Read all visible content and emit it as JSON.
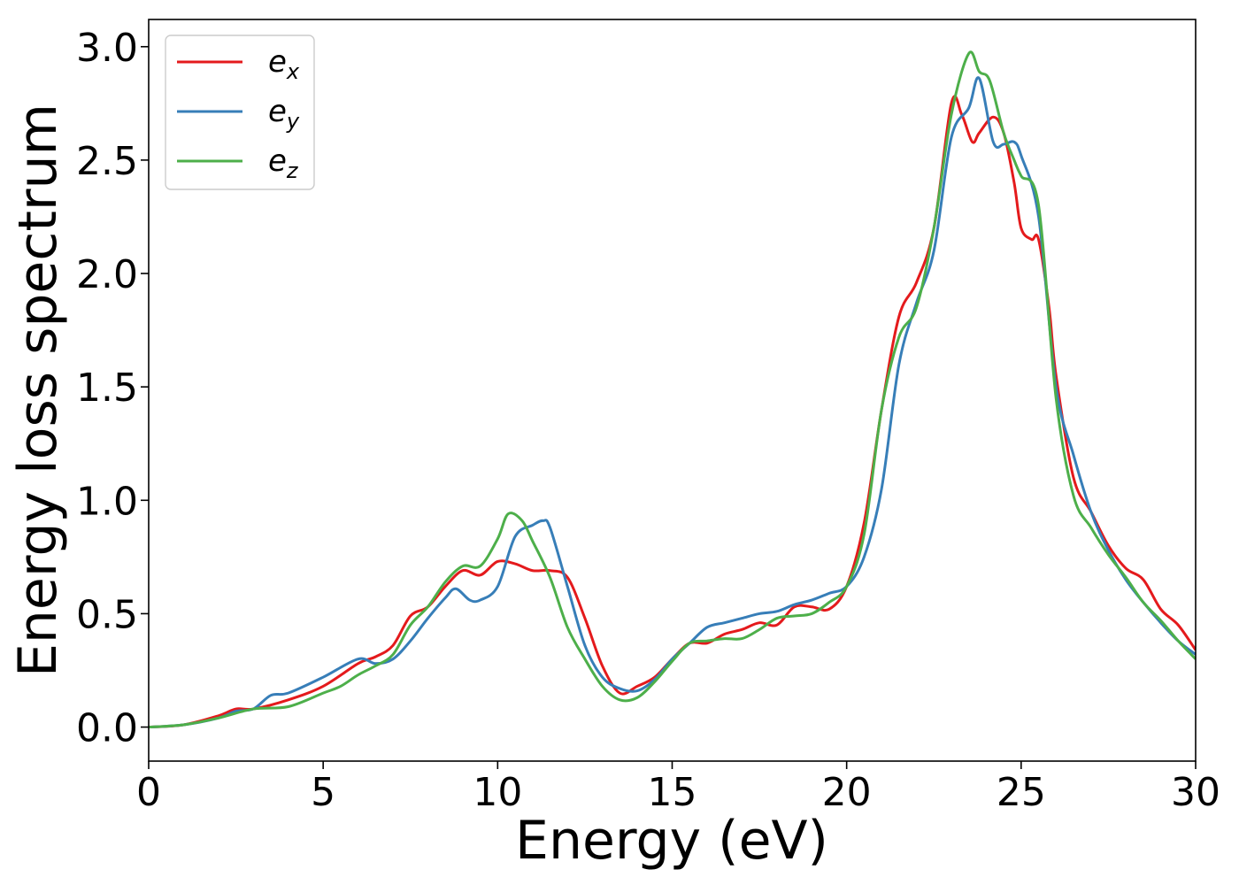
{
  "chart_data": {
    "type": "line",
    "title": "",
    "xlabel": "Energy (eV)",
    "ylabel": "Energy loss spectrum",
    "xlim": [
      0,
      30
    ],
    "ylim": [
      -0.15,
      3.12
    ],
    "xticks": [
      0,
      5,
      10,
      15,
      20,
      25,
      30
    ],
    "xtick_labels": [
      "0",
      "5",
      "10",
      "15",
      "20",
      "25",
      "30"
    ],
    "yticks": [
      0.0,
      0.5,
      1.0,
      1.5,
      2.0,
      2.5,
      3.0
    ],
    "ytick_labels": [
      "0.0",
      "0.5",
      "1.0",
      "1.5",
      "2.0",
      "2.5",
      "3.0"
    ],
    "grid": false,
    "legend_position": "top-left",
    "series": [
      {
        "name": "e_x",
        "legend_base": "e",
        "legend_sub": "x",
        "color": "#e41a1c",
        "x": [
          0,
          1,
          2,
          2.5,
          3,
          4,
          5,
          6,
          6.5,
          7,
          7.5,
          8,
          8.5,
          9,
          9.5,
          10,
          10.5,
          11,
          11.5,
          12,
          12.5,
          13,
          13.5,
          14,
          14.5,
          15,
          15.5,
          16,
          16.5,
          17,
          17.5,
          18,
          18.5,
          19,
          19.5,
          20,
          20.5,
          21,
          21.5,
          22,
          22.5,
          23,
          23.3,
          23.6,
          23.8,
          24.2,
          24.5,
          24.8,
          25,
          25.3,
          25.5,
          25.8,
          26,
          26.5,
          27,
          27.5,
          28,
          28.5,
          29,
          29.5,
          30
        ],
        "y": [
          0,
          0.01,
          0.05,
          0.08,
          0.08,
          0.12,
          0.18,
          0.28,
          0.31,
          0.36,
          0.49,
          0.53,
          0.62,
          0.69,
          0.67,
          0.73,
          0.72,
          0.69,
          0.69,
          0.66,
          0.48,
          0.27,
          0.15,
          0.18,
          0.22,
          0.3,
          0.37,
          0.37,
          0.41,
          0.43,
          0.46,
          0.45,
          0.53,
          0.53,
          0.52,
          0.62,
          0.9,
          1.4,
          1.81,
          1.96,
          2.2,
          2.75,
          2.7,
          2.58,
          2.62,
          2.69,
          2.62,
          2.4,
          2.2,
          2.15,
          2.15,
          1.85,
          1.55,
          1.1,
          0.95,
          0.8,
          0.7,
          0.65,
          0.52,
          0.45,
          0.34
        ]
      },
      {
        "name": "e_y",
        "legend_base": "e",
        "legend_sub": "y",
        "color": "#377eb8",
        "x": [
          0,
          1,
          2,
          2.5,
          3,
          3.5,
          4,
          5,
          6,
          6.5,
          7,
          7.5,
          8,
          8.5,
          8.8,
          9.2,
          9.5,
          10,
          10.5,
          11,
          11.3,
          11.5,
          12,
          12.5,
          13,
          13.5,
          14,
          14.5,
          15,
          15.5,
          16,
          16.5,
          17,
          17.5,
          18,
          18.5,
          19,
          19.5,
          20,
          20.5,
          21,
          21.5,
          22,
          22.5,
          23,
          23.5,
          23.8,
          24.2,
          24.5,
          24.8,
          25,
          25.5,
          26,
          26.5,
          27,
          27.5,
          28,
          28.5,
          29,
          29.5,
          30
        ],
        "y": [
          0,
          0.01,
          0.04,
          0.07,
          0.08,
          0.14,
          0.15,
          0.22,
          0.3,
          0.28,
          0.3,
          0.38,
          0.48,
          0.57,
          0.61,
          0.56,
          0.56,
          0.62,
          0.84,
          0.89,
          0.91,
          0.88,
          0.62,
          0.36,
          0.22,
          0.17,
          0.16,
          0.21,
          0.3,
          0.37,
          0.44,
          0.46,
          0.48,
          0.5,
          0.51,
          0.54,
          0.56,
          0.59,
          0.62,
          0.75,
          1.05,
          1.6,
          1.87,
          2.1,
          2.6,
          2.73,
          2.86,
          2.58,
          2.57,
          2.58,
          2.52,
          2.25,
          1.5,
          1.2,
          0.95,
          0.78,
          0.65,
          0.55,
          0.46,
          0.38,
          0.32
        ]
      },
      {
        "name": "e_z",
        "legend_base": "e",
        "legend_sub": "z",
        "color": "#4daf4a",
        "x": [
          0,
          1,
          2,
          3,
          4,
          5,
          5.5,
          6,
          6.5,
          7,
          7.5,
          8,
          8.5,
          9,
          9.5,
          10,
          10.3,
          10.7,
          11,
          11.5,
          12,
          12.5,
          13,
          13.5,
          14,
          14.5,
          15,
          15.5,
          16,
          16.5,
          17,
          17.5,
          18,
          18.5,
          19,
          19.5,
          20,
          20.5,
          21,
          21.5,
          22,
          22.5,
          23,
          23.5,
          23.8,
          24.1,
          24.5,
          24.8,
          25,
          25.5,
          26,
          26.5,
          27,
          27.5,
          28,
          28.5,
          29,
          29.5,
          30
        ],
        "y": [
          0,
          0.01,
          0.04,
          0.08,
          0.09,
          0.15,
          0.18,
          0.23,
          0.27,
          0.32,
          0.45,
          0.53,
          0.64,
          0.71,
          0.71,
          0.83,
          0.94,
          0.91,
          0.82,
          0.66,
          0.44,
          0.3,
          0.18,
          0.12,
          0.13,
          0.2,
          0.29,
          0.37,
          0.38,
          0.39,
          0.39,
          0.43,
          0.48,
          0.49,
          0.5,
          0.55,
          0.62,
          0.85,
          1.4,
          1.72,
          1.85,
          2.2,
          2.7,
          2.97,
          2.89,
          2.85,
          2.62,
          2.5,
          2.43,
          2.3,
          1.45,
          1.02,
          0.88,
          0.76,
          0.66,
          0.55,
          0.47,
          0.38,
          0.3
        ]
      }
    ]
  }
}
